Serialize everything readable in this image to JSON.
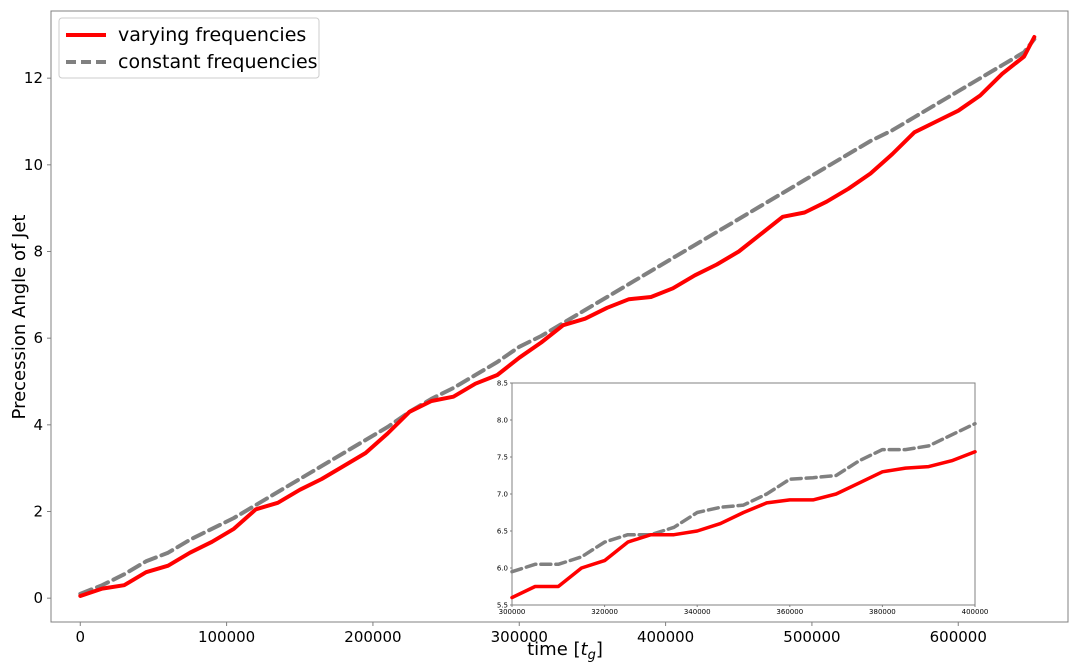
{
  "chart_data": [
    {
      "type": "line",
      "title": "",
      "xlabel": "time [",
      "xlabel_symbol": "t",
      "xlabel_subscript": "g",
      "xlabel_close": "]",
      "ylabel": "Precession Angle of Jet",
      "xlim": [
        -20000,
        675000
      ],
      "ylim": [
        -0.55,
        13.55
      ],
      "xticks": [
        0,
        100000,
        200000,
        300000,
        400000,
        500000,
        600000
      ],
      "xtick_labels": [
        "0",
        "100000",
        "200000",
        "300000",
        "400000",
        "500000",
        "600000"
      ],
      "yticks": [
        0,
        2,
        4,
        6,
        8,
        10,
        12
      ],
      "ytick_labels": [
        "0",
        "2",
        "4",
        "6",
        "8",
        "10",
        "12"
      ],
      "grid": false,
      "legend_position": "top-left",
      "series": [
        {
          "name": "varying frequencies",
          "color": "#ff0000",
          "style": "solid",
          "x": [
            0,
            15000,
            30000,
            45000,
            60000,
            75000,
            90000,
            105000,
            120000,
            135000,
            150000,
            165000,
            180000,
            195000,
            210000,
            225000,
            240000,
            255000,
            270000,
            285000,
            300000,
            315000,
            330000,
            345000,
            360000,
            375000,
            390000,
            405000,
            420000,
            435000,
            450000,
            465000,
            480000,
            495000,
            510000,
            525000,
            540000,
            555000,
            570000,
            585000,
            600000,
            615000,
            630000,
            645000,
            652000
          ],
          "y": [
            0.05,
            0.22,
            0.3,
            0.6,
            0.75,
            1.05,
            1.3,
            1.6,
            2.05,
            2.2,
            2.5,
            2.75,
            3.05,
            3.35,
            3.8,
            4.3,
            4.55,
            4.65,
            4.95,
            5.15,
            5.55,
            5.9,
            6.3,
            6.45,
            6.7,
            6.9,
            6.95,
            7.15,
            7.45,
            7.7,
            8.0,
            8.4,
            8.8,
            8.9,
            9.15,
            9.45,
            9.8,
            10.25,
            10.75,
            11.0,
            11.25,
            11.6,
            12.1,
            12.5,
            12.95
          ]
        },
        {
          "name": "constant frequencies",
          "color": "#808080",
          "style": "dashed",
          "x": [
            0,
            15000,
            30000,
            45000,
            60000,
            75000,
            90000,
            105000,
            120000,
            135000,
            150000,
            165000,
            180000,
            195000,
            210000,
            225000,
            240000,
            255000,
            270000,
            285000,
            300000,
            315000,
            330000,
            345000,
            360000,
            375000,
            390000,
            405000,
            420000,
            435000,
            450000,
            465000,
            480000,
            495000,
            510000,
            525000,
            540000,
            555000,
            570000,
            585000,
            600000,
            615000,
            630000,
            645000,
            652000
          ],
          "y": [
            0.1,
            0.3,
            0.55,
            0.85,
            1.05,
            1.35,
            1.6,
            1.85,
            2.15,
            2.45,
            2.75,
            3.05,
            3.35,
            3.65,
            3.95,
            4.3,
            4.6,
            4.85,
            5.15,
            5.45,
            5.8,
            6.05,
            6.35,
            6.65,
            6.95,
            7.25,
            7.55,
            7.85,
            8.15,
            8.45,
            8.75,
            9.05,
            9.35,
            9.65,
            9.95,
            10.25,
            10.55,
            10.8,
            11.1,
            11.4,
            11.7,
            12.0,
            12.3,
            12.6,
            12.9
          ]
        }
      ]
    },
    {
      "type": "line",
      "inset": true,
      "title": "",
      "xlim": [
        300000,
        400000
      ],
      "ylim": [
        5.5,
        8.5
      ],
      "xticks": [
        300000,
        320000,
        340000,
        360000,
        380000,
        400000
      ],
      "xtick_labels": [
        "300000",
        "320000",
        "340000",
        "360000",
        "380000",
        "400000"
      ],
      "yticks": [
        5.5,
        6.0,
        6.5,
        7.0,
        7.5,
        8.0,
        8.5
      ],
      "ytick_labels": [
        "5.5",
        "6.0",
        "6.5",
        "7.0",
        "7.5",
        "8.0",
        "8.5"
      ],
      "grid": false,
      "series": [
        {
          "color": "#ff0000",
          "style": "solid",
          "x": [
            300000,
            305000,
            310000,
            315000,
            320000,
            325000,
            330000,
            335000,
            340000,
            345000,
            350000,
            355000,
            360000,
            365000,
            370000,
            375000,
            380000,
            385000,
            390000,
            395000,
            400000
          ],
          "y": [
            5.6,
            5.75,
            5.75,
            6.0,
            6.1,
            6.35,
            6.45,
            6.45,
            6.5,
            6.6,
            6.75,
            6.88,
            6.92,
            6.92,
            7.0,
            7.15,
            7.3,
            7.35,
            7.37,
            7.45,
            7.57
          ]
        },
        {
          "color": "#808080",
          "style": "dashed",
          "x": [
            300000,
            305000,
            310000,
            315000,
            320000,
            325000,
            330000,
            335000,
            340000,
            345000,
            350000,
            355000,
            360000,
            365000,
            370000,
            375000,
            380000,
            385000,
            390000,
            395000,
            400000
          ],
          "y": [
            5.95,
            6.05,
            6.05,
            6.15,
            6.35,
            6.45,
            6.45,
            6.55,
            6.75,
            6.82,
            6.85,
            7.0,
            7.2,
            7.22,
            7.25,
            7.45,
            7.6,
            7.6,
            7.65,
            7.8,
            7.95
          ]
        }
      ]
    }
  ]
}
